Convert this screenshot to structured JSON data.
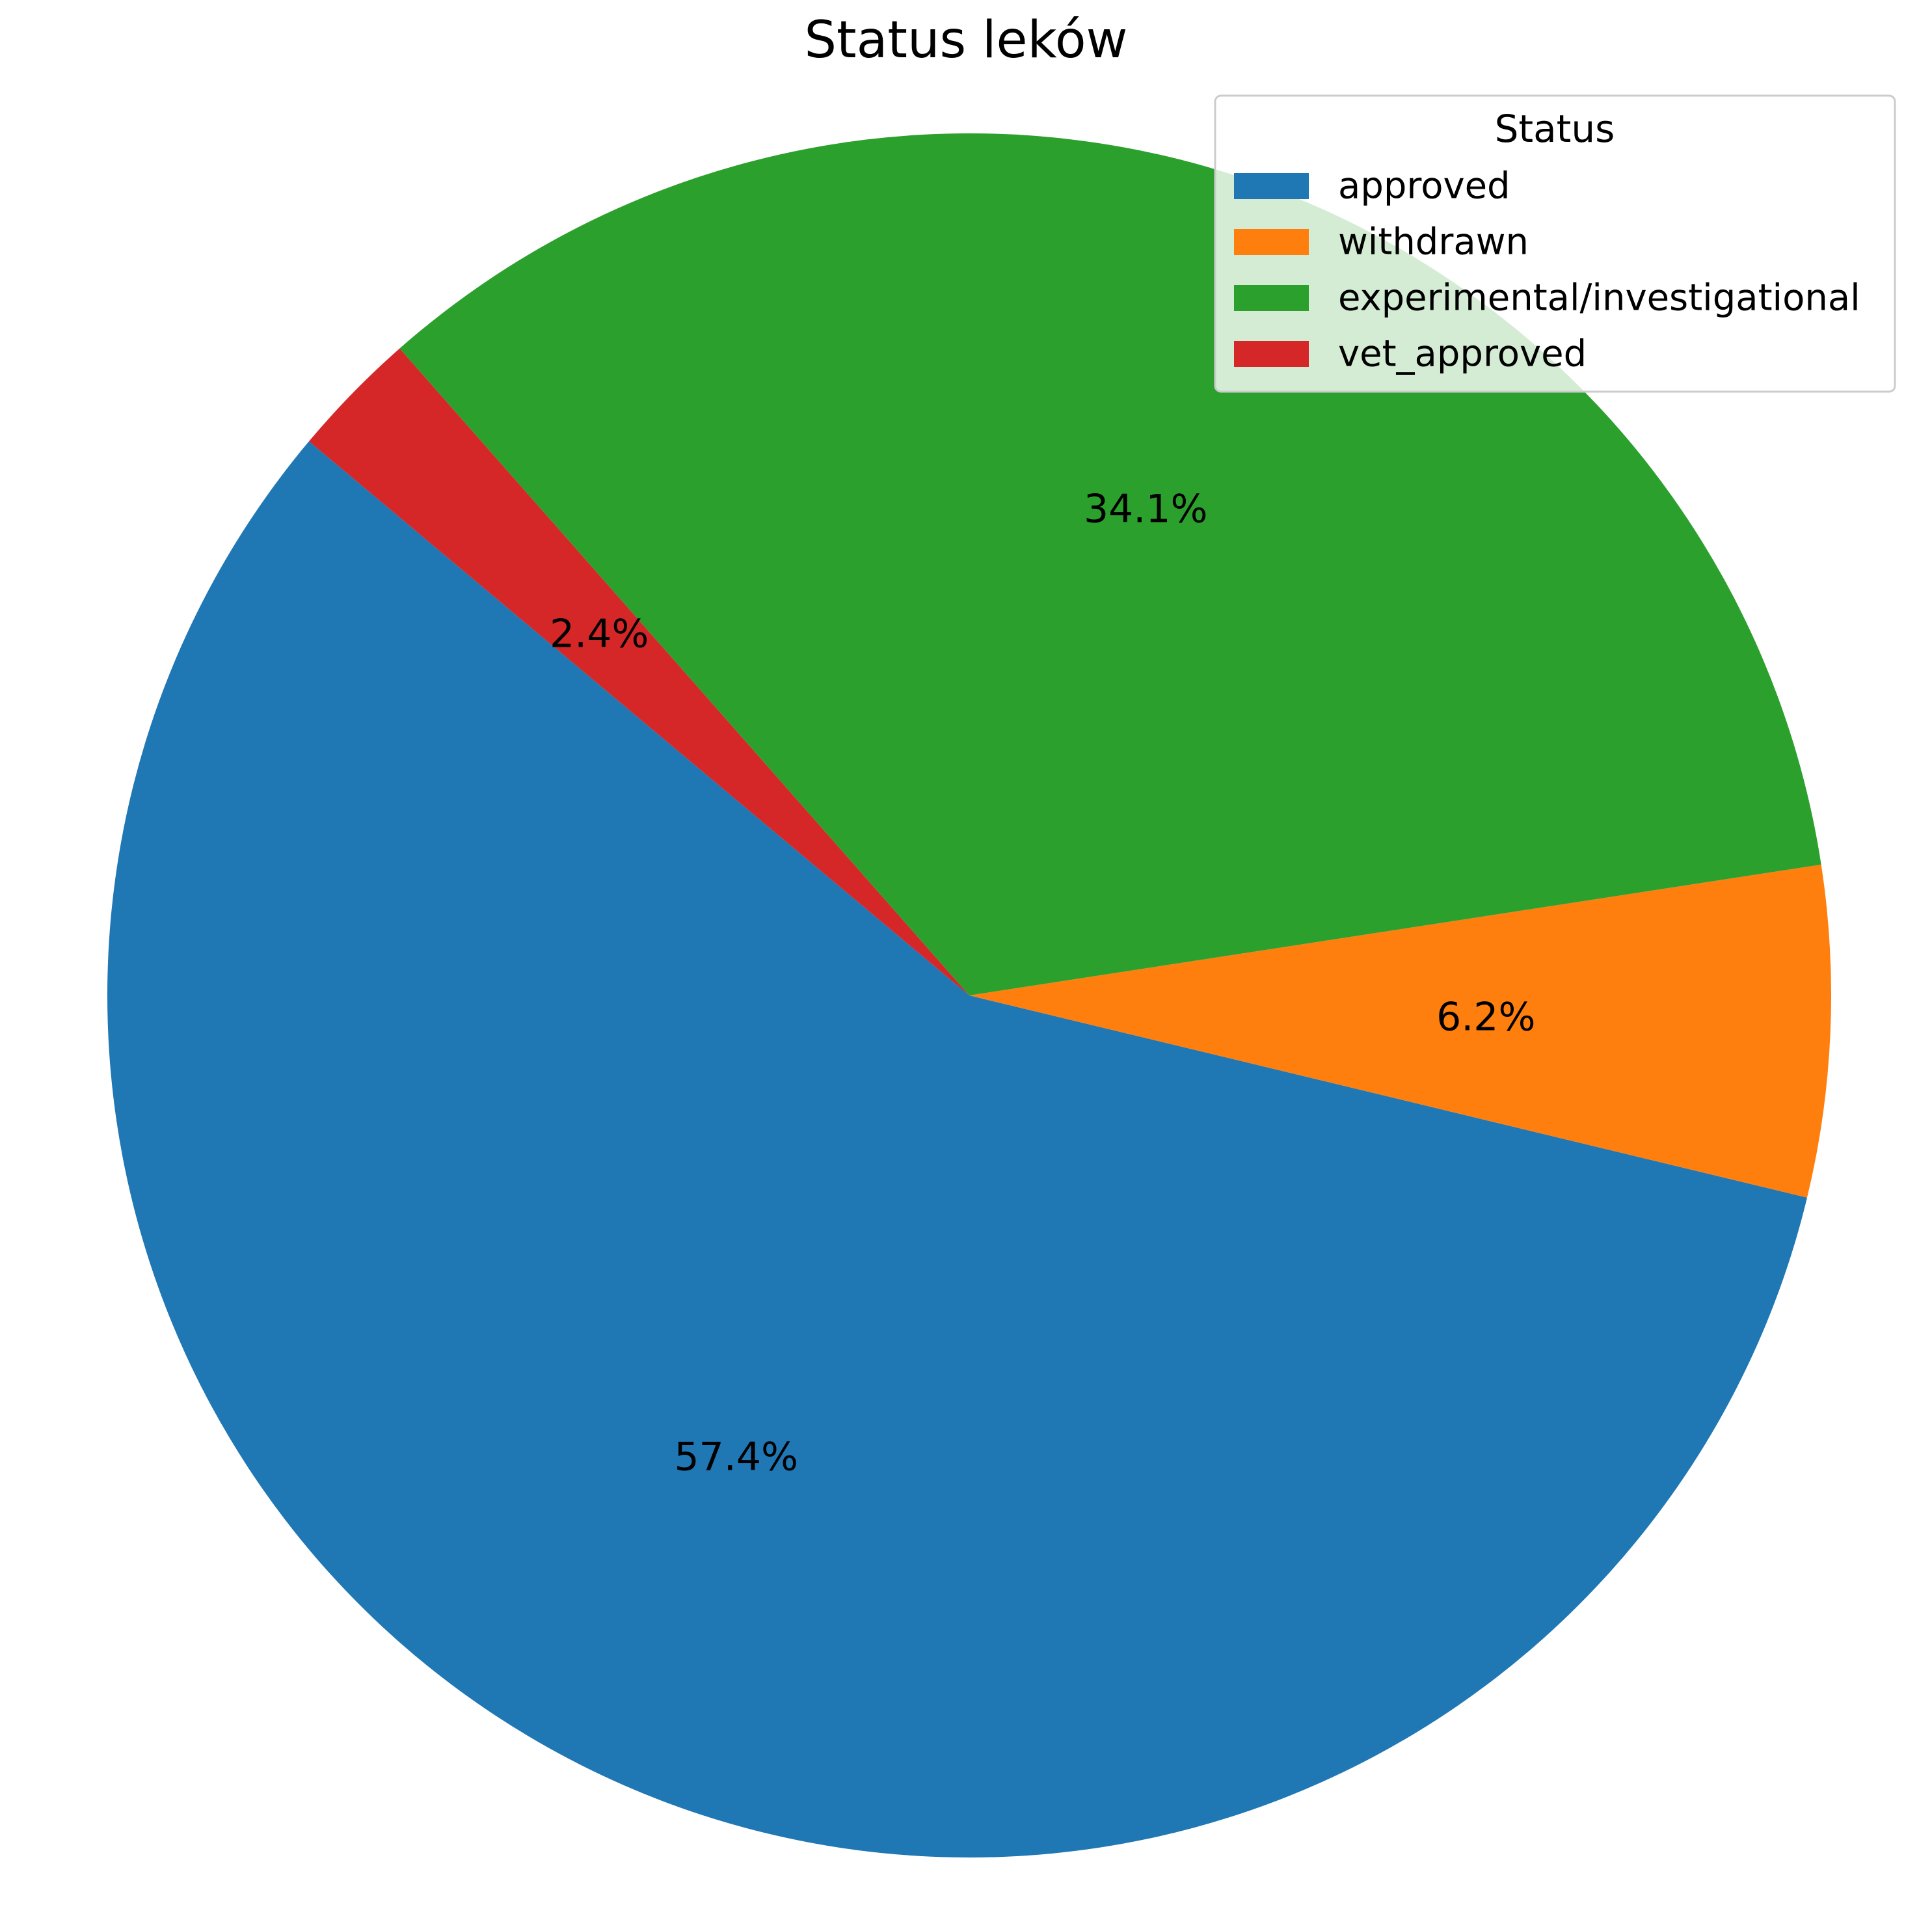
{
  "chart_data": {
    "type": "pie",
    "title": "Status leków",
    "categories": [
      "approved",
      "withdrawn",
      "experimental/investigational",
      "vet_approved"
    ],
    "values": [
      57.4,
      6.2,
      34.1,
      2.4
    ],
    "labels": [
      "57.4%",
      "6.2%",
      "34.1%",
      "2.4%"
    ],
    "colors": [
      "#1f77b4",
      "#ff7f0e",
      "#2ca02c",
      "#d62728"
    ],
    "start_angle_deg": 140,
    "direction": "counterclockwise",
    "legend": {
      "title": "Status",
      "placement": "top-right"
    }
  }
}
